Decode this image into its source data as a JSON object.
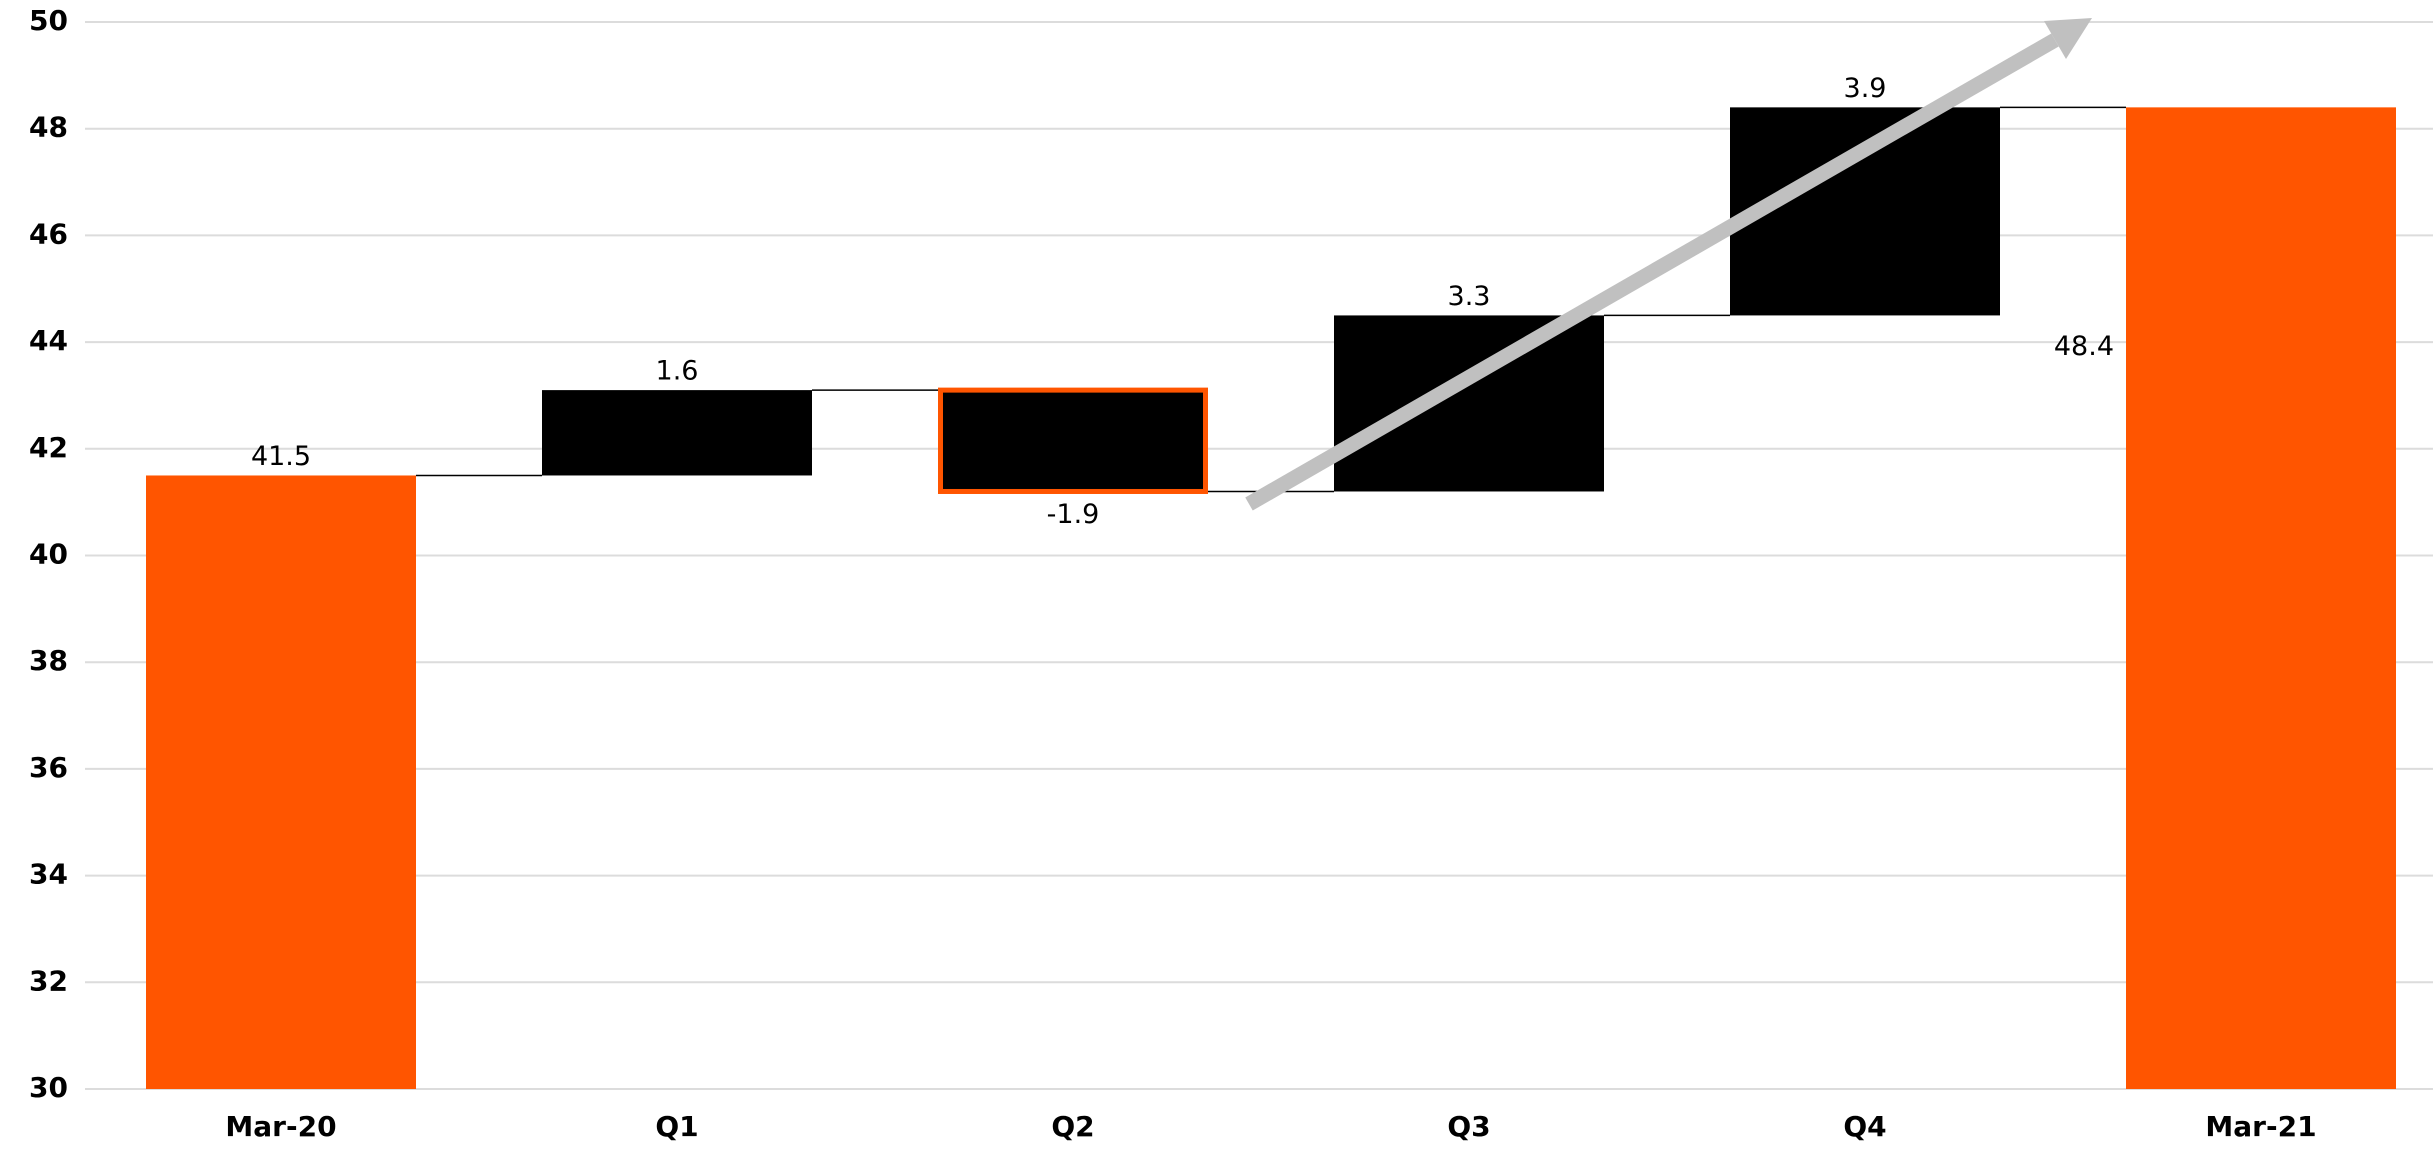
{
  "chart_data": {
    "type": "waterfall",
    "categories": [
      "Mar-20",
      "Q1",
      "Q2",
      "Q3",
      "Q4",
      "Mar-21"
    ],
    "values": [
      41.5,
      1.6,
      -1.9,
      3.3,
      3.9,
      48.4
    ],
    "measure": [
      "absolute",
      "relative",
      "relative",
      "relative",
      "relative",
      "absolute"
    ],
    "colors": [
      "#ff5500",
      "#000000",
      "#000000",
      "#000000",
      "#000000",
      "#ff5500"
    ],
    "edge_colors": [
      null,
      null,
      "#ff5500",
      null,
      null,
      null
    ],
    "ylim": [
      30,
      50
    ],
    "yticks": [
      30,
      32,
      34,
      36,
      38,
      40,
      42,
      44,
      46,
      48,
      50
    ],
    "grid": true
  }
}
